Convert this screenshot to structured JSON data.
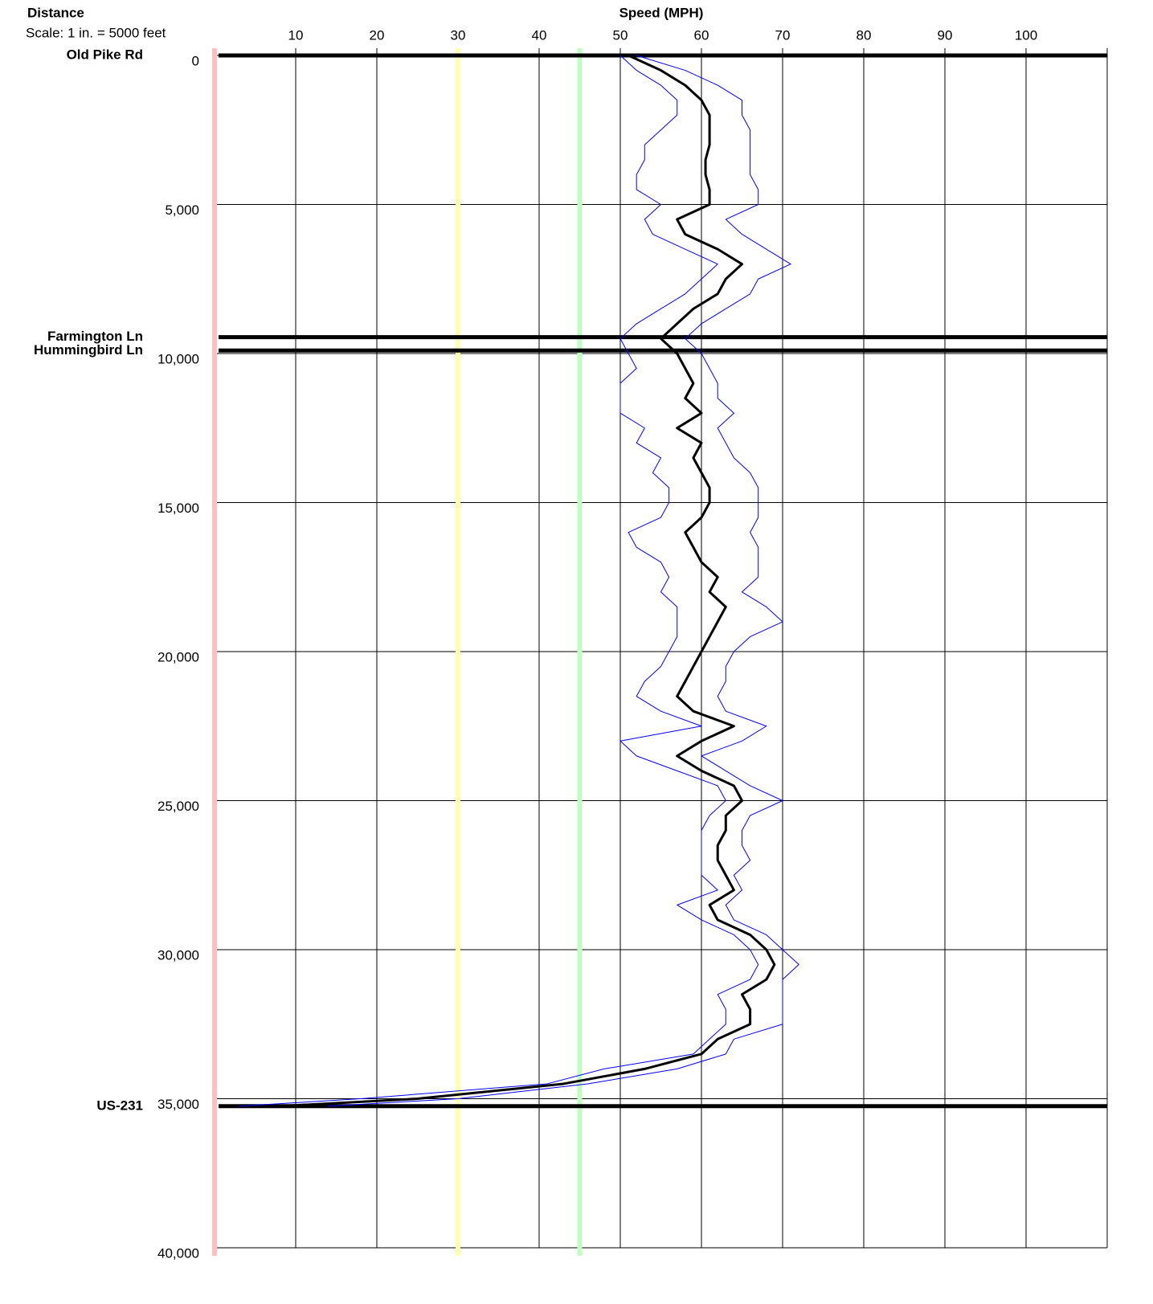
{
  "chart_data": {
    "type": "line",
    "orientation": "vertical",
    "title": "Speed (MPH)",
    "y_label": "Distance",
    "scale_note": "Scale: 1 in. = 5000 feet",
    "xlim": [
      0,
      110
    ],
    "xticks": [
      10,
      20,
      30,
      40,
      50,
      60,
      70,
      80,
      90,
      100
    ],
    "ylim": [
      0,
      40000
    ],
    "yticks": [
      0,
      {
        "value": 5000,
        "label": "5,000"
      },
      {
        "value": 10000,
        "label": "10,000"
      },
      {
        "value": 15000,
        "label": "15,000"
      },
      {
        "value": 20000,
        "label": "20,000"
      },
      {
        "value": 25000,
        "label": "25,000"
      },
      {
        "value": 30000,
        "label": "30,000"
      },
      {
        "value": 35000,
        "label": "35,000"
      },
      {
        "value": 40000,
        "label": "40,000"
      }
    ],
    "grid": true,
    "reference_lines": [
      {
        "value": 0,
        "color": "#ffc0c0"
      },
      {
        "value": 30,
        "color": "#ffffb0"
      },
      {
        "value": 45,
        "color": "#c0ffc0"
      }
    ],
    "roads": [
      {
        "name": "Old Pike Rd",
        "distance": 0
      },
      {
        "name": "Farmington Ln",
        "distance": 9450
      },
      {
        "name": "Hummingbird Ln",
        "distance": 9900
      },
      {
        "name": "US-231",
        "distance": 35250
      }
    ],
    "x": [
      0,
      500,
      1000,
      1500,
      2000,
      2500,
      3000,
      3500,
      4000,
      4500,
      5000,
      5500,
      6000,
      6500,
      7000,
      7500,
      8000,
      8500,
      9000,
      9500,
      10000,
      10500,
      11000,
      11500,
      12000,
      12500,
      13000,
      13500,
      14000,
      14500,
      15000,
      15500,
      16000,
      16500,
      17000,
      17500,
      18000,
      18500,
      19000,
      19500,
      20000,
      20500,
      21000,
      21500,
      22000,
      22500,
      23000,
      23500,
      24000,
      24500,
      25000,
      25500,
      26000,
      26500,
      27000,
      27500,
      28000,
      28500,
      29000,
      29500,
      30000,
      30500,
      31000,
      31500,
      32000,
      32500,
      33000,
      33500,
      34000,
      34500,
      35000,
      35250
    ],
    "series": [
      {
        "color": "#0000ff",
        "width": 1,
        "values": [
          50,
          52,
          55,
          57,
          57,
          55,
          53,
          53,
          52,
          52,
          55,
          53,
          54,
          58,
          62,
          60,
          58,
          55,
          52,
          50,
          51,
          52,
          50,
          50,
          50,
          53,
          52,
          55,
          54,
          56,
          56,
          55,
          51,
          52,
          55,
          56,
          55,
          57,
          57,
          57,
          56,
          55,
          53,
          52,
          55,
          60,
          50,
          52,
          57,
          62,
          63,
          61,
          60,
          60,
          60,
          60,
          62,
          57,
          60,
          64,
          66,
          67,
          66,
          62,
          63,
          63,
          61,
          59,
          48,
          41,
          18,
          3
        ]
      },
      {
        "color": "#0000ff",
        "width": 1,
        "values": [
          52,
          58,
          62,
          65,
          65,
          66,
          66,
          66,
          66,
          67,
          67,
          63,
          65,
          68,
          71,
          67,
          66,
          63,
          60,
          58,
          60,
          61,
          62,
          62,
          64,
          62,
          63,
          64,
          66,
          67,
          67,
          67,
          66,
          67,
          67,
          67,
          65,
          68,
          70,
          66,
          64,
          63,
          63,
          62,
          63,
          68,
          65,
          60,
          63,
          66,
          70,
          66,
          65,
          65,
          66,
          64,
          65,
          63,
          64,
          68,
          70,
          72,
          70,
          70,
          70,
          70,
          64,
          63,
          57,
          46,
          30,
          14
        ]
      },
      {
        "color": "#000000",
        "width": 3,
        "values": [
          51,
          55,
          58,
          60,
          61,
          61,
          61,
          60.5,
          60.5,
          61,
          61,
          57,
          58,
          62,
          65,
          63,
          62,
          59,
          57,
          55,
          57,
          58,
          59,
          58,
          60,
          57,
          60,
          59,
          60,
          61,
          61,
          60,
          58,
          59,
          60,
          62,
          61,
          63,
          62,
          61,
          60,
          59,
          58,
          57,
          59,
          64,
          60,
          57,
          60,
          64,
          65,
          63,
          63,
          62,
          62,
          63,
          64,
          61,
          62,
          66,
          68,
          69,
          68,
          65,
          66,
          66,
          62,
          60,
          53,
          43,
          25,
          8
        ]
      }
    ]
  }
}
